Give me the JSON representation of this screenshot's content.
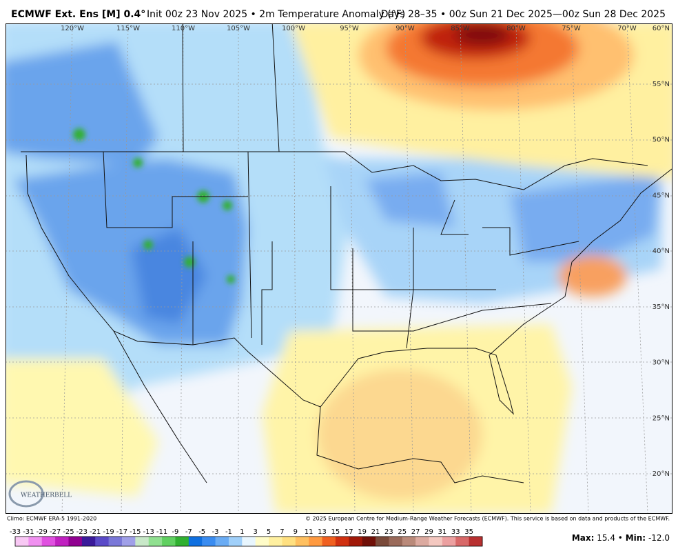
{
  "header": {
    "title_bold": "ECMWF Ext. Ens [M] 0.4°",
    "title_rest": "Init 00z 23 Nov 2025 • 2m Temperature Anomaly (°F)",
    "period": "Days 28–35 • 00z Sun 21 Dec 2025—00z Sun 28 Dec 2025"
  },
  "map": {
    "lon_labels": [
      "120°W",
      "115°W",
      "110°W",
      "105°W",
      "100°W",
      "95°W",
      "90°W",
      "85°W",
      "80°W",
      "75°W",
      "70°W"
    ],
    "lat_labels": [
      "60°N",
      "55°N",
      "50°N",
      "45°N",
      "40°N",
      "35°N",
      "30°N",
      "25°N",
      "20°N"
    ],
    "logo": "WEATHERBELL"
  },
  "footer": {
    "climo": "Climo: ECMWF ERA-5 1991-2020",
    "copyright": "© 2025 European Centre for Medium-Range Weather Forecasts (ECMWF). This service is based on data and products of the ECMWF."
  },
  "colorbar": {
    "labels": [
      -33,
      -31,
      -29,
      -27,
      -25,
      -23,
      -21,
      -19,
      -17,
      -15,
      -13,
      -11,
      -9,
      -7,
      -5,
      -3,
      -1,
      1,
      3,
      5,
      7,
      9,
      11,
      13,
      15,
      17,
      19,
      21,
      23,
      25,
      27,
      29,
      31,
      33,
      35
    ],
    "colors": [
      "#f8c8f4",
      "#f090f0",
      "#e050e0",
      "#c020c0",
      "#900090",
      "#3a1a9a",
      "#5a4ac8",
      "#7a78d8",
      "#a0a0e8",
      "#c8e8c8",
      "#90e090",
      "#60d060",
      "#30b030",
      "#1070e0",
      "#3a8cf0",
      "#6aacf4",
      "#a0d0fa",
      "#e8f6fe",
      "#fffcc8",
      "#fff0a0",
      "#ffe080",
      "#ffc060",
      "#ff9a40",
      "#f06020",
      "#d03010",
      "#a01808",
      "#701008",
      "#7a4a3a",
      "#9a6a5a",
      "#ba8a7a",
      "#dcaaa0",
      "#f4c8c0",
      "#eca0a0",
      "#d86868",
      "#b83030"
    ]
  },
  "stats": {
    "max_label": "Max:",
    "max": "15.4",
    "separator": "•",
    "min_label": "Min:",
    "min": "-12.0"
  }
}
